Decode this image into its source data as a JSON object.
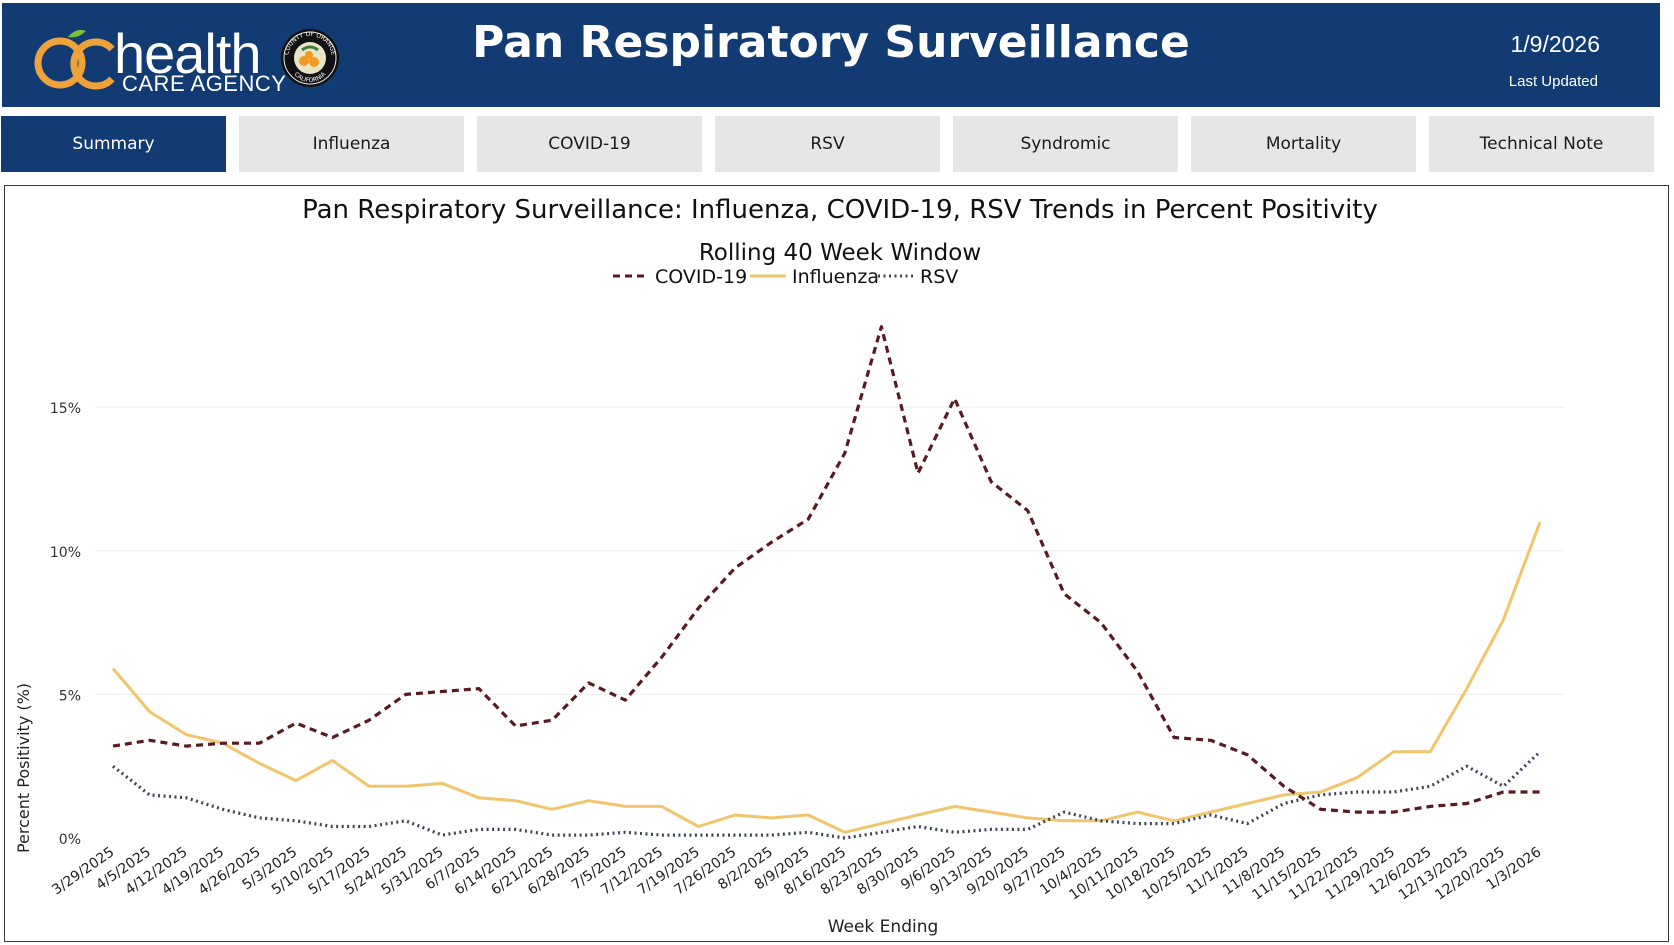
{
  "header": {
    "logo_word": "health",
    "logo_sub": "CARE AGENCY",
    "seal_top": "COUNTY OF ORANGE",
    "seal_bottom": "CALIFORNIA",
    "title": "Pan Respiratory Surveillance",
    "date": "1/9/2026",
    "date_label": "Last Updated"
  },
  "colors": {
    "header_bg": "#123a73",
    "covid": "#5a1a1f",
    "influenza": "#f2c46b",
    "rsv": "#3f4458"
  },
  "tabs": [
    {
      "label": "Summary",
      "active": true
    },
    {
      "label": "Influenza",
      "active": false
    },
    {
      "label": "COVID-19",
      "active": false
    },
    {
      "label": "RSV",
      "active": false
    },
    {
      "label": "Syndromic",
      "active": false
    },
    {
      "label": "Mortality",
      "active": false
    },
    {
      "label": "Technical Note",
      "active": false
    }
  ],
  "chart_data": {
    "type": "line",
    "title": "Pan Respiratory Surveillance: Influenza, COVID-19, RSV Trends in Percent Positivity",
    "subtitle": "Rolling 40 Week Window",
    "xlabel": "Week Ending",
    "ylabel": "Percent Positivity (%)",
    "ylim": [
      0,
      18
    ],
    "yticks": [
      0,
      5,
      10,
      15
    ],
    "ytick_labels": [
      "0%",
      "5%",
      "10%",
      "15%"
    ],
    "grid": true,
    "legend_position": "top-center",
    "x": [
      "3/29/2025",
      "4/5/2025",
      "4/12/2025",
      "4/19/2025",
      "4/26/2025",
      "5/3/2025",
      "5/10/2025",
      "5/17/2025",
      "5/24/2025",
      "5/31/2025",
      "6/7/2025",
      "6/14/2025",
      "6/21/2025",
      "6/28/2025",
      "7/5/2025",
      "7/12/2025",
      "7/19/2025",
      "7/26/2025",
      "8/2/2025",
      "8/9/2025",
      "8/16/2025",
      "8/23/2025",
      "8/30/2025",
      "9/6/2025",
      "9/13/2025",
      "9/20/2025",
      "9/27/2025",
      "10/4/2025",
      "10/11/2025",
      "10/18/2025",
      "10/25/2025",
      "11/1/2025",
      "11/8/2025",
      "11/15/2025",
      "11/22/2025",
      "11/29/2025",
      "12/6/2025",
      "12/13/2025",
      "12/20/2025",
      "1/3/2026"
    ],
    "series": [
      {
        "name": "COVID-19",
        "style": "dashed",
        "color": "#5a1a1f",
        "values": [
          3.2,
          3.4,
          3.2,
          3.3,
          3.3,
          4.0,
          3.5,
          4.1,
          5.0,
          5.1,
          5.2,
          3.9,
          4.1,
          5.4,
          4.8,
          6.3,
          8.0,
          9.4,
          10.3,
          11.1,
          13.4,
          17.8,
          12.7,
          15.3,
          12.4,
          11.4,
          8.5,
          7.5,
          5.8,
          3.5,
          3.4,
          2.9,
          1.8,
          1.0,
          0.9,
          0.9,
          1.1,
          1.2,
          1.6,
          1.6
        ]
      },
      {
        "name": "Influenza",
        "style": "solid",
        "color": "#f2c46b",
        "values": [
          5.9,
          4.4,
          3.6,
          3.3,
          2.6,
          2.0,
          2.7,
          1.8,
          1.8,
          1.9,
          1.4,
          1.3,
          1.0,
          1.3,
          1.1,
          1.1,
          0.4,
          0.8,
          0.7,
          0.8,
          0.2,
          0.5,
          0.8,
          1.1,
          0.9,
          0.7,
          0.6,
          0.6,
          0.9,
          0.6,
          0.9,
          1.2,
          1.5,
          1.6,
          2.1,
          3.0,
          3.0,
          5.2,
          7.6,
          11.0
        ]
      },
      {
        "name": "RSV",
        "style": "dotted",
        "color": "#3f4458",
        "values": [
          2.5,
          1.5,
          1.4,
          1.0,
          0.7,
          0.6,
          0.4,
          0.4,
          0.6,
          0.1,
          0.3,
          0.3,
          0.1,
          0.1,
          0.2,
          0.1,
          0.1,
          0.1,
          0.1,
          0.2,
          0.0,
          0.2,
          0.4,
          0.2,
          0.3,
          0.3,
          0.9,
          0.6,
          0.5,
          0.5,
          0.8,
          0.5,
          1.2,
          1.5,
          1.6,
          1.6,
          1.8,
          2.5,
          1.8,
          3.0
        ]
      }
    ]
  }
}
